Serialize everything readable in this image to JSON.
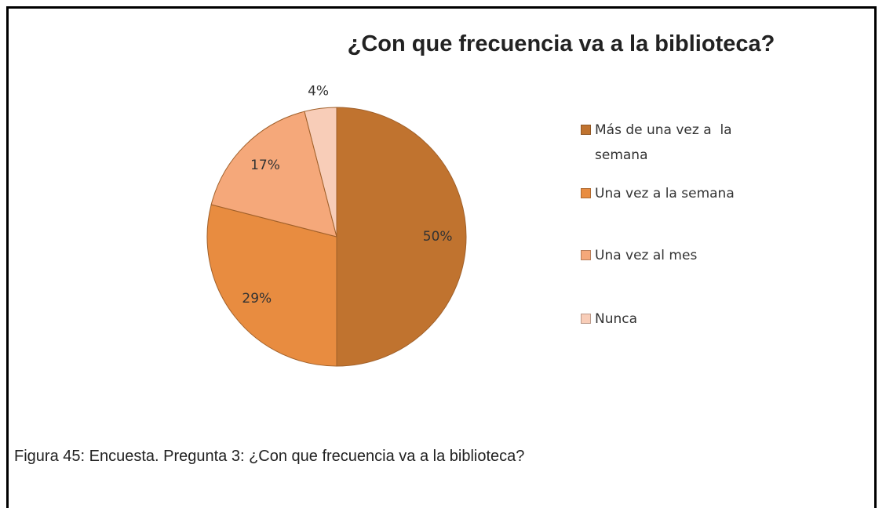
{
  "chart_data": {
    "type": "pie",
    "title": "¿Con que frecuencia va a la biblioteca?",
    "categories": [
      "Más de una vez a  la semana",
      "Una vez a la semana",
      "Una vez al mes",
      "Nunca"
    ],
    "values": [
      50,
      29,
      17,
      4
    ],
    "value_labels": [
      "50%",
      "29%",
      "17%",
      "4%"
    ],
    "colors": [
      "#c0732f",
      "#e88c40",
      "#f5a87a",
      "#f8cdb8"
    ],
    "legend": "right"
  },
  "caption": "Figura 45: Encuesta. Pregunta 3: ¿Con que frecuencia va a la biblioteca?"
}
